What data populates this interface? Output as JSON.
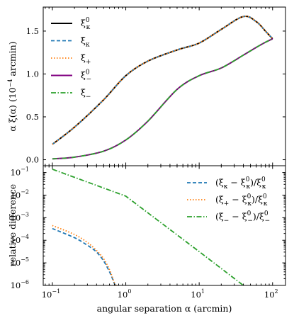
{
  "chart_data": [
    {
      "type": "line",
      "panel": "top",
      "ylabel": {
        "main": "α ξ(α) (10",
        "exp": "−4",
        "unit": " arcmin)"
      },
      "xscale": "log",
      "xlim": [
        0.075,
        150
      ],
      "ylim": [
        -0.07,
        1.78
      ],
      "yticks": [
        "0.0",
        "0.5",
        "1.0",
        "1.5"
      ],
      "ytick_values": [
        0.0,
        0.5,
        1.0,
        1.5
      ],
      "grid": false,
      "legend_position": "top-left",
      "x": [
        0.1,
        0.2,
        0.5,
        1,
        2,
        5,
        10,
        20,
        40,
        60,
        80,
        100
      ],
      "series": [
        {
          "name": "ξκ0",
          "label": {
            "base": "ξ",
            "sub": "κ",
            "sup": "0"
          },
          "color": "#000000",
          "dash": "solid",
          "width": 2.0,
          "values": [
            0.18,
            0.38,
            0.7,
            0.98,
            1.15,
            1.28,
            1.36,
            1.52,
            1.67,
            1.61,
            1.5,
            1.41
          ]
        },
        {
          "name": "ξκ",
          "label": {
            "base": "ξ",
            "sub": "κ",
            "sup": ""
          },
          "color": "#1f77b4",
          "dash": "5,3",
          "width": 1.8,
          "values": [
            0.18,
            0.38,
            0.7,
            0.98,
            1.15,
            1.28,
            1.36,
            1.52,
            1.67,
            1.61,
            1.5,
            1.41
          ]
        },
        {
          "name": "ξ+",
          "label": {
            "base": "ξ",
            "sub": "+",
            "sup": ""
          },
          "color": "#ff7f0e",
          "dash": "1.5,2.5",
          "width": 1.8,
          "values": [
            0.18,
            0.38,
            0.7,
            0.98,
            1.15,
            1.28,
            1.36,
            1.52,
            1.67,
            1.61,
            1.5,
            1.41
          ]
        },
        {
          "name": "ξ−0",
          "label": {
            "base": "ξ",
            "sub": "−",
            "sup": "0"
          },
          "color": "#800080",
          "dash": "solid",
          "width": 2.0,
          "values": [
            0.01,
            0.03,
            0.1,
            0.23,
            0.45,
            0.82,
            0.98,
            1.07,
            1.22,
            1.31,
            1.37,
            1.41
          ]
        },
        {
          "name": "ξ−",
          "label": {
            "base": "ξ",
            "sub": "−",
            "sup": ""
          },
          "color": "#2ca02c",
          "dash": "7,2.5,1.5,2.5",
          "width": 1.8,
          "values": [
            0.01,
            0.03,
            0.1,
            0.23,
            0.45,
            0.82,
            0.98,
            1.07,
            1.22,
            1.31,
            1.37,
            1.41
          ]
        }
      ]
    },
    {
      "type": "line",
      "panel": "bottom",
      "xlabel": "angular separation α (arcmin)",
      "ylabel": "relative difference",
      "xscale": "log",
      "yscale": "log",
      "xlim": [
        0.075,
        150
      ],
      "ylim": [
        1e-06,
        0.2
      ],
      "xticks": [
        {
          "base": "10",
          "exp": "−1",
          "value": 0.1
        },
        {
          "base": "10",
          "exp": "0",
          "value": 1
        },
        {
          "base": "10",
          "exp": "1",
          "value": 10
        },
        {
          "base": "10",
          "exp": "2",
          "value": 100
        }
      ],
      "yticks": [
        {
          "base": "10",
          "exp": "−1",
          "value": 0.1
        },
        {
          "base": "10",
          "exp": "−2",
          "value": 0.01
        },
        {
          "base": "10",
          "exp": "−3",
          "value": 0.001
        },
        {
          "base": "10",
          "exp": "−4",
          "value": 0.0001
        },
        {
          "base": "10",
          "exp": "−5",
          "value": 1e-05
        },
        {
          "base": "10",
          "exp": "−6",
          "value": 1e-06
        }
      ],
      "grid": false,
      "legend_position": "top-right",
      "series": [
        {
          "name": "(ξκ − ξκ0)/ξκ0",
          "label": {
            "a": "κ",
            "b": "κ",
            "c": "κ"
          },
          "color": "#1f77b4",
          "dash": "5,3",
          "width": 1.8,
          "x": [
            0.1,
            0.2,
            0.3,
            0.4,
            0.5,
            0.6,
            0.65,
            0.7,
            0.72
          ],
          "values": [
            0.00033,
            0.00013,
            6e-05,
            3e-05,
            1.2e-05,
            4e-06,
            2.2e-06,
            1.2e-06,
            1e-06
          ]
        },
        {
          "name": "(ξ+ − ξκ0)/ξκ0",
          "label": {
            "a": "+",
            "b": "κ",
            "c": "κ"
          },
          "color": "#ff7f0e",
          "dash": "1.5,2.5",
          "width": 1.8,
          "x": [
            0.1,
            0.2,
            0.3,
            0.4,
            0.5,
            0.6,
            0.65,
            0.7,
            0.74
          ],
          "values": [
            0.00045,
            0.00018,
            8e-05,
            3.5e-05,
            1.5e-05,
            5e-06,
            2.5e-06,
            1.3e-06,
            1e-06
          ]
        },
        {
          "name": "(ξ− − ξ−0)/ξ−0",
          "label": {
            "a": "−",
            "b": "−",
            "c": "−"
          },
          "color": "#2ca02c",
          "dash": "7,2.5,1.5,2.5",
          "width": 1.8,
          "x": [
            0.1,
            1,
            10,
            40
          ],
          "values": [
            0.14,
            0.009,
            3.15e-05,
            1e-06
          ]
        }
      ]
    }
  ]
}
